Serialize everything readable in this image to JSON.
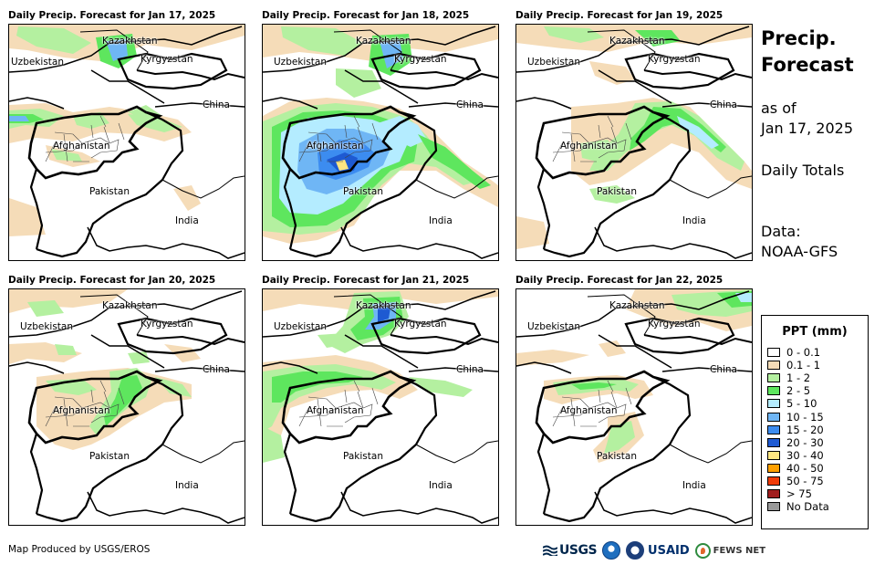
{
  "panels": [
    {
      "title": "Daily Precip. Forecast for Jan 17, 2025"
    },
    {
      "title": "Daily Precip. Forecast for Jan 18, 2025"
    },
    {
      "title": "Daily Precip. Forecast for Jan 19, 2025"
    },
    {
      "title": "Daily Precip. Forecast for Jan 20, 2025"
    },
    {
      "title": "Daily Precip. Forecast for Jan 21, 2025"
    },
    {
      "title": "Daily Precip. Forecast for Jan 22, 2025"
    }
  ],
  "map_labels": {
    "kazakhstan": "Kazakhstan",
    "uzbekistan": "Uzbekistan",
    "kyrgyzstan": "Kyrgyzstan",
    "china": "China",
    "afghanistan": "Afghanistan",
    "pakistan": "Pakistan",
    "india": "India"
  },
  "sidebar": {
    "title_line1": "Precip.",
    "title_line2": "Forecast",
    "asof_line1": "as of",
    "asof_line2": "Jan 17, 2025",
    "totals": "Daily Totals",
    "data_line1": "Data:",
    "data_line2": "NOAA-GFS"
  },
  "legend": {
    "title": "PPT (mm)",
    "items": [
      {
        "label": "0 - 0.1",
        "color": "#ffffff"
      },
      {
        "label": "0.1 - 1",
        "color": "#f5dcb8"
      },
      {
        "label": "1 - 2",
        "color": "#b4f0a0"
      },
      {
        "label": "2 - 5",
        "color": "#5ee65e"
      },
      {
        "label": "5 - 10",
        "color": "#b4ecff"
      },
      {
        "label": "10 - 15",
        "color": "#6fb6f5"
      },
      {
        "label": "15 - 20",
        "color": "#3c8cf0"
      },
      {
        "label": "20 - 30",
        "color": "#1e5ad2"
      },
      {
        "label": "30 - 40",
        "color": "#ffe682"
      },
      {
        "label": "40 - 50",
        "color": "#ffa000"
      },
      {
        "label": "50 - 75",
        "color": "#f03c0a"
      },
      {
        "label": "> 75",
        "color": "#a01e1e"
      },
      {
        "label": "No Data",
        "color": "#999999"
      }
    ]
  },
  "footer": {
    "credit": "Map Produced by USGS/EROS"
  },
  "logos": {
    "usgs": "USGS",
    "usaid": "USAID",
    "fews": "FEWS NET"
  }
}
